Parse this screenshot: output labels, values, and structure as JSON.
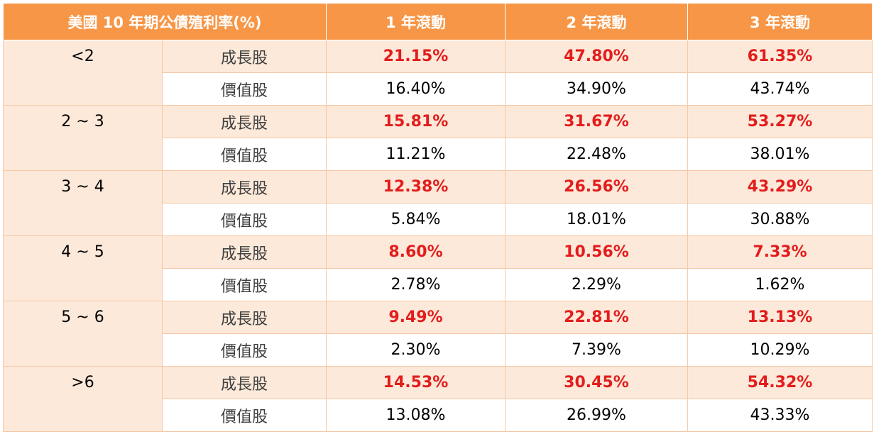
{
  "header": {
    "col0": "美國 10 年期公債殖利率(%)",
    "col2": "1 年滾動",
    "col3": "2 年滾動",
    "col4": "3 年滾動"
  },
  "colors": {
    "header_bg": "#f79646",
    "highlight_row_bg": "#fde9d9",
    "growth_value_color": "#e31c1c"
  },
  "groups": [
    {
      "range": "<2",
      "growth": {
        "label": "成長股",
        "v1": "21.15%",
        "v2": "47.80%",
        "v3": "61.35%"
      },
      "value": {
        "label": "價值股",
        "v1": "16.40%",
        "v2": "34.90%",
        "v3": "43.74%"
      }
    },
    {
      "range": "2 ~ 3",
      "growth": {
        "label": "成長股",
        "v1": "15.81%",
        "v2": "31.67%",
        "v3": "53.27%"
      },
      "value": {
        "label": "價值股",
        "v1": "11.21%",
        "v2": "22.48%",
        "v3": "38.01%"
      }
    },
    {
      "range": "3 ~ 4",
      "growth": {
        "label": "成長股",
        "v1": "12.38%",
        "v2": "26.56%",
        "v3": "43.29%"
      },
      "value": {
        "label": "價值股",
        "v1": "5.84%",
        "v2": "18.01%",
        "v3": "30.88%"
      }
    },
    {
      "range": "4 ~ 5",
      "growth": {
        "label": "成長股",
        "v1": "8.60%",
        "v2": "10.56%",
        "v3": "7.33%"
      },
      "value": {
        "label": "價值股",
        "v1": "2.78%",
        "v2": "2.29%",
        "v3": "1.62%"
      }
    },
    {
      "range": "5 ~ 6",
      "growth": {
        "label": "成長股",
        "v1": "9.49%",
        "v2": "22.81%",
        "v3": "13.13%"
      },
      "value": {
        "label": "價值股",
        "v1": "2.30%",
        "v2": "7.39%",
        "v3": "10.29%"
      }
    },
    {
      "range": ">6",
      "growth": {
        "label": "成長股",
        "v1": "14.53%",
        "v2": "30.45%",
        "v3": "54.32%"
      },
      "value": {
        "label": "價值股",
        "v1": "13.08%",
        "v2": "26.99%",
        "v3": "43.33%"
      }
    }
  ]
}
